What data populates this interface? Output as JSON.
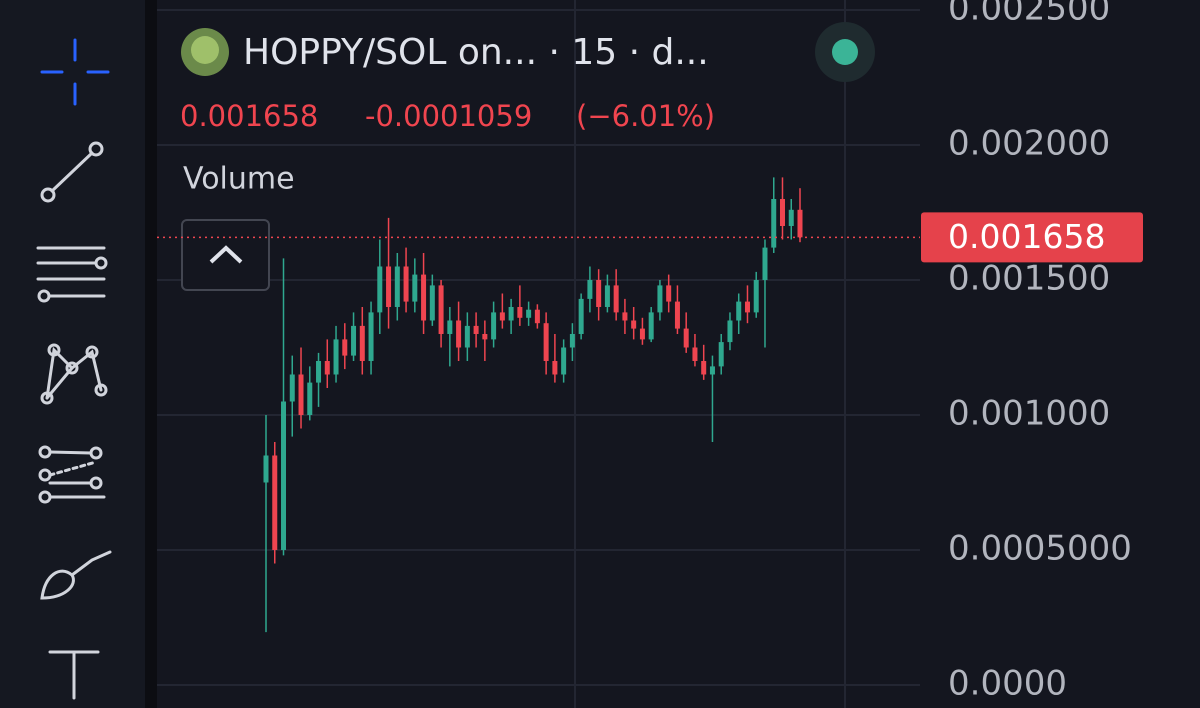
{
  "chart_data": {
    "type": "candlestick",
    "title": "HOPPY/SOL on... · 15 · d...",
    "last_price": 0.001658,
    "change": -0.0001059,
    "change_pct": {
      "value": -6.01,
      "label": "(−6.01%)"
    },
    "indicator": "Volume",
    "up_color": "#2fa88f",
    "down_color": "#ef4550",
    "grid": true,
    "ylim": [
      -8.52e-05,
      0.002537
    ],
    "yticks": [
      {
        "value": 0.0025,
        "label": "0.002500"
      },
      {
        "value": 0.002,
        "label": "0.002000"
      },
      {
        "value": 0.0015,
        "label": "0.001500"
      },
      {
        "value": 0.001,
        "label": "0.001000"
      },
      {
        "value": 0.0005,
        "label": "0.0005000"
      },
      {
        "value": 0,
        "label": "0.0000"
      }
    ],
    "open": [
      0.00075,
      0.00085,
      0.0005,
      0.00105,
      0.00115,
      0.001,
      0.00112,
      0.0012,
      0.00115,
      0.00128,
      0.00122,
      0.00133,
      0.0012,
      0.00138,
      0.00155,
      0.0014,
      0.00155,
      0.00142,
      0.00152,
      0.00135,
      0.00148,
      0.0013,
      0.00135,
      0.00125,
      0.00133,
      0.0013,
      0.00128,
      0.00138,
      0.00135,
      0.0014,
      0.00136,
      0.00139,
      0.00134,
      0.0012,
      0.00115,
      0.00125,
      0.0013,
      0.00143,
      0.0015,
      0.0014,
      0.00148,
      0.00138,
      0.00135,
      0.00132,
      0.00128,
      0.00138,
      0.00148,
      0.00142,
      0.00132,
      0.00125,
      0.0012,
      0.00115,
      0.00118,
      0.00127,
      0.00135,
      0.00142,
      0.00138,
      0.0015,
      0.00162,
      0.0018,
      0.0017,
      0.00176
    ],
    "high": [
      0.001,
      0.0009,
      0.00158,
      0.00122,
      0.00125,
      0.00118,
      0.00123,
      0.00128,
      0.00133,
      0.00134,
      0.00138,
      0.0014,
      0.00142,
      0.00165,
      0.00173,
      0.0016,
      0.00162,
      0.00158,
      0.0016,
      0.00152,
      0.0015,
      0.0014,
      0.00142,
      0.00138,
      0.00138,
      0.00135,
      0.00142,
      0.00145,
      0.00143,
      0.00148,
      0.00142,
      0.00141,
      0.00138,
      0.0013,
      0.00128,
      0.00134,
      0.00145,
      0.00155,
      0.00154,
      0.00152,
      0.00154,
      0.00143,
      0.0014,
      0.00136,
      0.0014,
      0.0015,
      0.00152,
      0.00148,
      0.00138,
      0.0013,
      0.00126,
      0.00122,
      0.0013,
      0.00138,
      0.00145,
      0.00148,
      0.00153,
      0.00165,
      0.00188,
      0.00188,
      0.0018,
      0.00184
    ],
    "low": [
      0.000196,
      0.00045,
      0.00048,
      0.00092,
      0.00095,
      0.00098,
      0.00103,
      0.0011,
      0.00112,
      0.00117,
      0.0012,
      0.00115,
      0.00115,
      0.0013,
      0.00132,
      0.00135,
      0.00138,
      0.00138,
      0.0013,
      0.00133,
      0.00125,
      0.00118,
      0.0012,
      0.0012,
      0.00125,
      0.0012,
      0.00125,
      0.00132,
      0.0013,
      0.00133,
      0.00133,
      0.00132,
      0.00115,
      0.00112,
      0.00112,
      0.0012,
      0.00128,
      0.00138,
      0.00135,
      0.00138,
      0.00135,
      0.0013,
      0.00128,
      0.00126,
      0.00127,
      0.00135,
      0.00138,
      0.0013,
      0.00123,
      0.00118,
      0.00113,
      0.0009,
      0.00115,
      0.00124,
      0.0013,
      0.00134,
      0.00136,
      0.00125,
      0.0016,
      0.00165,
      0.00165,
      0.00164
    ],
    "close": [
      0.00085,
      0.0005,
      0.00105,
      0.00115,
      0.001,
      0.00112,
      0.0012,
      0.00115,
      0.00128,
      0.00122,
      0.00133,
      0.0012,
      0.00138,
      0.00155,
      0.0014,
      0.00155,
      0.00142,
      0.00152,
      0.00135,
      0.00148,
      0.0013,
      0.00135,
      0.00125,
      0.00133,
      0.0013,
      0.00128,
      0.00138,
      0.00135,
      0.0014,
      0.00136,
      0.00139,
      0.00134,
      0.0012,
      0.00115,
      0.00125,
      0.0013,
      0.00143,
      0.0015,
      0.0014,
      0.00148,
      0.00138,
      0.00135,
      0.00132,
      0.00128,
      0.00138,
      0.00148,
      0.00142,
      0.00132,
      0.00125,
      0.0012,
      0.00115,
      0.00118,
      0.00127,
      0.00135,
      0.00142,
      0.00138,
      0.0015,
      0.00162,
      0.0018,
      0.0017,
      0.00176,
      0.001658
    ]
  }
}
